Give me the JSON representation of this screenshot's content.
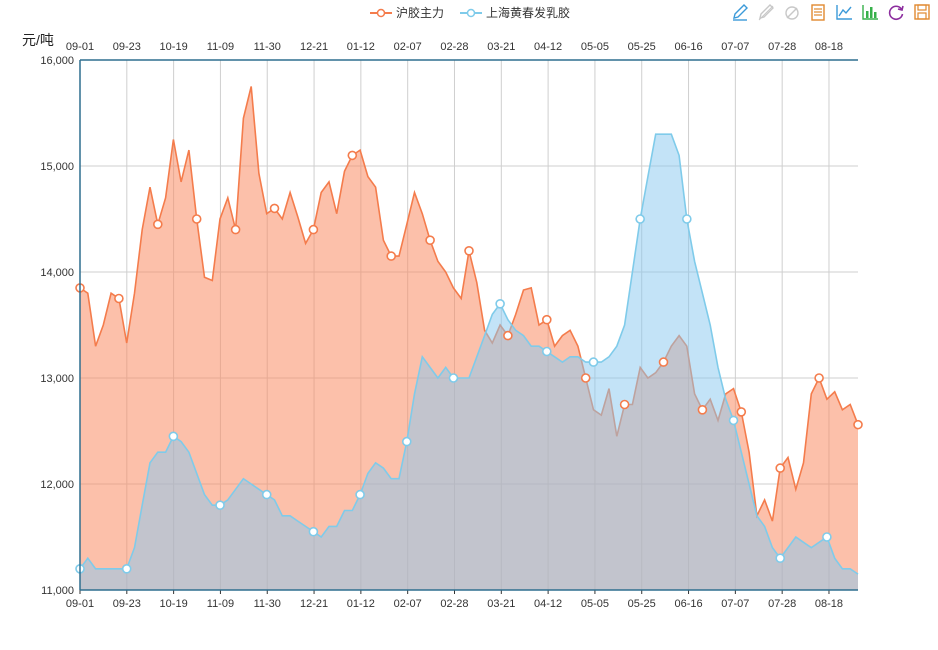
{
  "chart_data": {
    "type": "area",
    "ylabel": "元/吨",
    "ylim": [
      11000,
      16000
    ],
    "y_ticks": [
      "11,000",
      "12,000",
      "13,000",
      "14,000",
      "15,000",
      "16,000"
    ],
    "x_ticks": [
      "09-01",
      "09-23",
      "10-19",
      "11-09",
      "11-30",
      "12-21",
      "01-12",
      "02-07",
      "02-28",
      "03-21",
      "04-12",
      "05-05",
      "05-25",
      "06-16",
      "07-07",
      "07-28",
      "08-18"
    ],
    "x_count": 101,
    "series": [
      {
        "name": "沪胶主力",
        "color": "#f47c4c",
        "fill": "rgba(250,140,100,0.55)",
        "values": [
          13850,
          13800,
          13300,
          13500,
          13800,
          13750,
          13330,
          13800,
          14400,
          14800,
          14450,
          14700,
          15250,
          14850,
          15150,
          14500,
          13950,
          13920,
          14500,
          14700,
          14400,
          15450,
          15750,
          14930,
          14550,
          14600,
          14500,
          14750,
          14520,
          14270,
          14400,
          14750,
          14850,
          14550,
          14950,
          15100,
          15150,
          14900,
          14800,
          14300,
          14150,
          14150,
          14450,
          14750,
          14550,
          14300,
          14100,
          14000,
          13850,
          13750,
          14200,
          13900,
          13450,
          13330,
          13500,
          13400,
          13600,
          13830,
          13850,
          13500,
          13550,
          13300,
          13400,
          13450,
          13300,
          13000,
          12700,
          12650,
          12900,
          12450,
          12750,
          12750,
          13100,
          13000,
          13050,
          13150,
          13300,
          13400,
          13300,
          12850,
          12700,
          12800,
          12600,
          12850,
          12900,
          12680,
          12300,
          11700,
          11850,
          11650,
          12150,
          12250,
          11950,
          12200,
          12850,
          13000,
          12800,
          12870,
          12700,
          12750,
          12560
        ],
        "marker_every": 5
      },
      {
        "name": "上海黄春发乳胶",
        "color": "#7fcbea",
        "fill": "rgba(135,200,240,0.50)",
        "values": [
          11200,
          11300,
          11200,
          11200,
          11200,
          11200,
          11200,
          11400,
          11800,
          12200,
          12300,
          12300,
          12450,
          12400,
          12300,
          12100,
          11900,
          11800,
          11800,
          11850,
          11950,
          12050,
          12000,
          11950,
          11900,
          11850,
          11700,
          11700,
          11650,
          11600,
          11550,
          11500,
          11600,
          11600,
          11750,
          11750,
          11900,
          12100,
          12200,
          12150,
          12050,
          12050,
          12400,
          12850,
          13200,
          13100,
          13000,
          13100,
          13000,
          13000,
          13000,
          13200,
          13400,
          13600,
          13700,
          13550,
          13450,
          13400,
          13300,
          13300,
          13250,
          13200,
          13150,
          13200,
          13200,
          13150,
          13150,
          13150,
          13200,
          13300,
          13500,
          14000,
          14500,
          14900,
          15300,
          15300,
          15300,
          15100,
          14500,
          14100,
          13800,
          13500,
          13100,
          12800,
          12600,
          12300,
          12000,
          11700,
          11600,
          11400,
          11300,
          11400,
          11500,
          11450,
          11400,
          11450,
          11500,
          11300,
          11200,
          11200,
          11150
        ],
        "marker_every": 6
      }
    ]
  },
  "legend": [
    "沪胶主力",
    "上海黄春发乳胶"
  ],
  "toolbar": {
    "icons": [
      "mark-icon",
      "mark-undo-icon",
      "mark-clear-icon",
      "data-view-icon",
      "line-chart-icon",
      "bar-chart-icon",
      "restore-icon",
      "save-image-icon"
    ],
    "colors": [
      "#3b9ad9",
      "#c8c8c8",
      "#c8c8c8",
      "#e0892f",
      "#3b9ad9",
      "#37b04a",
      "#8c2d9e",
      "#e0892f"
    ]
  }
}
